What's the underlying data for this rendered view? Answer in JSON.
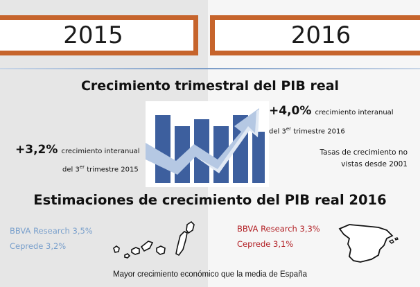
{
  "years": {
    "left": "2015",
    "right": "2016"
  },
  "title_quarterly": "Crecimiento trimestral del PIB real",
  "stat_2016": {
    "value": "+4,0%",
    "desc": "crecimiento interanual",
    "quarter_prefix": "del 3",
    "quarter_sup": "er",
    "quarter_suffix": " trimestre 2016",
    "note_line1": "Tasas de crecimiento no",
    "note_line2": "vistas desde 2001"
  },
  "stat_2015": {
    "value": "+3,2%",
    "desc": "crecimiento interanual",
    "quarter_prefix": "del 3",
    "quarter_sup": "er",
    "quarter_suffix": " trimestre 2015"
  },
  "title_estimates": "Estimaciones de crecimiento del PIB real 2016",
  "estimates_canarias": [
    {
      "source": "BBVA Research",
      "value": "3,5%"
    },
    {
      "source": "Ceprede",
      "value": "3,2%"
    }
  ],
  "estimates_espana": [
    {
      "source": "BBVA Research",
      "value": "3,3%"
    },
    {
      "source": "Ceprede",
      "value": "3,1%"
    }
  ],
  "footer": "Mayor crecimiento económico que la media de España",
  "colors": {
    "accent_orange": "#c6642c",
    "canarias_blue": "#7aa0cc",
    "espana_red": "#b21f24",
    "bar_dark": "#3d5f9e",
    "bar_light": "#b5c8e3"
  },
  "icons": [
    "growth-bar-chart-icon",
    "rising-arrow-icon",
    "canary-islands-map-icon",
    "spain-map-icon"
  ]
}
